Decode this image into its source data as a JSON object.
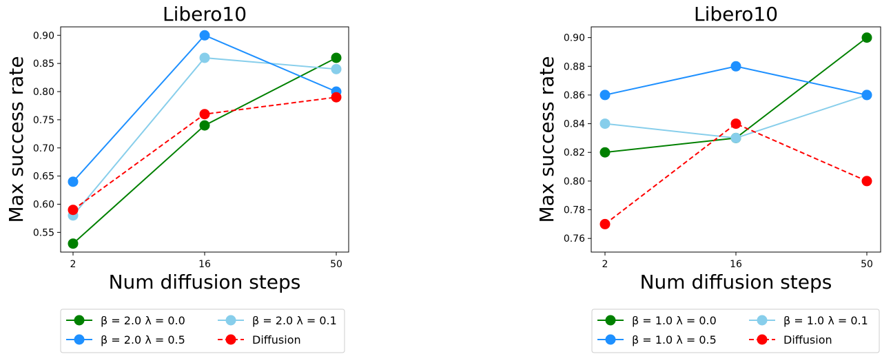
{
  "chart_data": [
    {
      "type": "line",
      "title": "Libero10",
      "xlabel": "Num diffusion steps",
      "ylabel": "Max success rate",
      "categories": [
        "2",
        "16",
        "50"
      ],
      "yticks": [
        "0.55",
        "0.60",
        "0.65",
        "0.70",
        "0.75",
        "0.80",
        "0.85",
        "0.90"
      ],
      "ylim": [
        0.515,
        0.915
      ],
      "grid": false,
      "legend_placement": "below",
      "series": [
        {
          "name": "β = 2.0 λ = 0.0",
          "color": "#008000",
          "dashed": false,
          "values": [
            0.53,
            0.74,
            0.86
          ]
        },
        {
          "name": "β = 2.0 λ = 0.1",
          "color": "#87ceeb",
          "dashed": false,
          "values": [
            0.58,
            0.86,
            0.84
          ]
        },
        {
          "name": "β = 2.0 λ = 0.5",
          "color": "#1e90ff",
          "dashed": false,
          "values": [
            0.64,
            0.9,
            0.8
          ]
        },
        {
          "name": "Diffusion",
          "color": "#ff0000",
          "dashed": true,
          "values": [
            0.59,
            0.76,
            0.79
          ]
        }
      ]
    },
    {
      "type": "line",
      "title": "Libero10",
      "xlabel": "Num diffusion steps",
      "ylabel": "Max success rate",
      "categories": [
        "2",
        "16",
        "50"
      ],
      "yticks": [
        "0.76",
        "0.78",
        "0.80",
        "0.82",
        "0.84",
        "0.86",
        "0.88",
        "0.90"
      ],
      "ylim": [
        0.7505,
        0.9075
      ],
      "grid": false,
      "legend_placement": "below",
      "series": [
        {
          "name": "β = 1.0 λ = 0.0",
          "color": "#008000",
          "dashed": false,
          "values": [
            0.82,
            0.83,
            0.9
          ]
        },
        {
          "name": "β = 1.0 λ = 0.1",
          "color": "#87ceeb",
          "dashed": false,
          "values": [
            0.84,
            0.83,
            0.86
          ]
        },
        {
          "name": "β = 1.0 λ = 0.5",
          "color": "#1e90ff",
          "dashed": false,
          "values": [
            0.86,
            0.88,
            0.86
          ]
        },
        {
          "name": "Diffusion",
          "color": "#ff0000",
          "dashed": true,
          "values": [
            0.77,
            0.84,
            0.8
          ]
        }
      ]
    }
  ]
}
